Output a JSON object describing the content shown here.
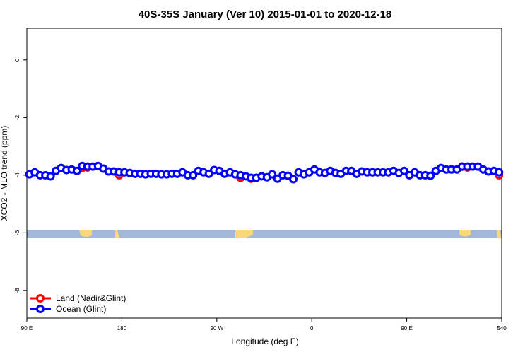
{
  "chart_data": {
    "type": "scatter",
    "title": "40S-35S January (Ver 10)   2015-01-01 to 2020-12-18",
    "x_label": "Longitude (deg E)",
    "y_label": "XCO2 - MLO trend (ppm)",
    "xlim": [
      90,
      540
    ],
    "ylim": [
      -8.96,
      1.1
    ],
    "xticks": [
      {
        "value": 90,
        "label": "90 E"
      },
      180,
      {
        "value": 270,
        "label": "90 W"
      },
      {
        "value": 360,
        "label": "0"
      },
      {
        "value": 450,
        "label": "90 E"
      },
      540
    ],
    "yticks": [
      0,
      -2,
      -4,
      -6,
      -8
    ],
    "legend": "bottom-left",
    "series": [
      {
        "name": "Land (Nadir&Glint)",
        "color": "#ff0000",
        "x": [
          142.5,
          147.5,
          177.5,
          292.5,
          302.5,
          502.5,
          507.5,
          537.5
        ],
        "values": [
          -3.75,
          -3.73,
          -4.0,
          -4.09,
          -4.12,
          -3.7,
          -3.73,
          -4.0
        ]
      },
      {
        "name": "Ocean (Glint)",
        "color": "#0000ff",
        "x": [
          92.5,
          97.5,
          102.5,
          107.5,
          112.5,
          117.5,
          122.5,
          127.5,
          132.5,
          137.5,
          142.5,
          147.5,
          152.5,
          157.5,
          162.5,
          167.5,
          172.5,
          177.5,
          182.5,
          187.5,
          192.5,
          197.5,
          202.5,
          207.5,
          212.5,
          217.5,
          222.5,
          227.5,
          232.5,
          237.5,
          242.5,
          247.5,
          252.5,
          257.5,
          262.5,
          267.5,
          272.5,
          277.5,
          282.5,
          287.5,
          292.5,
          297.5,
          302.5,
          307.5,
          312.5,
          317.5,
          322.5,
          327.5,
          332.5,
          337.5,
          342.5,
          347.5,
          352.5,
          357.5,
          362.5,
          367.5,
          372.5,
          377.5,
          382.5,
          387.5,
          392.5,
          397.5,
          402.5,
          407.5,
          412.5,
          417.5,
          422.5,
          427.5,
          432.5,
          437.5,
          442.5,
          447.5,
          452.5,
          457.5,
          462.5,
          467.5,
          472.5,
          477.5,
          482.5,
          487.5,
          492.5,
          497.5,
          502.5,
          507.5,
          512.5,
          517.5,
          522.5,
          527.5,
          532.5,
          537.5
        ],
        "values": [
          -3.97,
          -3.9,
          -4.0,
          -4.0,
          -4.04,
          -3.85,
          -3.75,
          -3.82,
          -3.8,
          -3.85,
          -3.68,
          -3.7,
          -3.7,
          -3.68,
          -3.77,
          -3.87,
          -3.87,
          -3.9,
          -3.9,
          -3.92,
          -3.95,
          -3.95,
          -3.97,
          -3.95,
          -3.95,
          -3.97,
          -3.97,
          -3.95,
          -3.95,
          -3.9,
          -4.0,
          -4.0,
          -3.85,
          -3.9,
          -3.95,
          -3.82,
          -3.85,
          -3.95,
          -3.9,
          -3.97,
          -4.0,
          -4.04,
          -4.09,
          -4.09,
          -4.04,
          -4.07,
          -3.97,
          -4.12,
          -4.0,
          -4.02,
          -4.14,
          -3.9,
          -3.97,
          -3.9,
          -3.8,
          -3.9,
          -3.92,
          -3.85,
          -3.92,
          -3.95,
          -3.85,
          -3.85,
          -3.95,
          -3.87,
          -3.9,
          -3.9,
          -3.9,
          -3.9,
          -3.9,
          -3.85,
          -3.92,
          -3.85,
          -4.0,
          -3.9,
          -4.0,
          -4.0,
          -4.02,
          -3.85,
          -3.75,
          -3.8,
          -3.8,
          -3.8,
          -3.7,
          -3.7,
          -3.7,
          -3.7,
          -3.8,
          -3.87,
          -3.85,
          -3.9
        ]
      }
    ]
  }
}
